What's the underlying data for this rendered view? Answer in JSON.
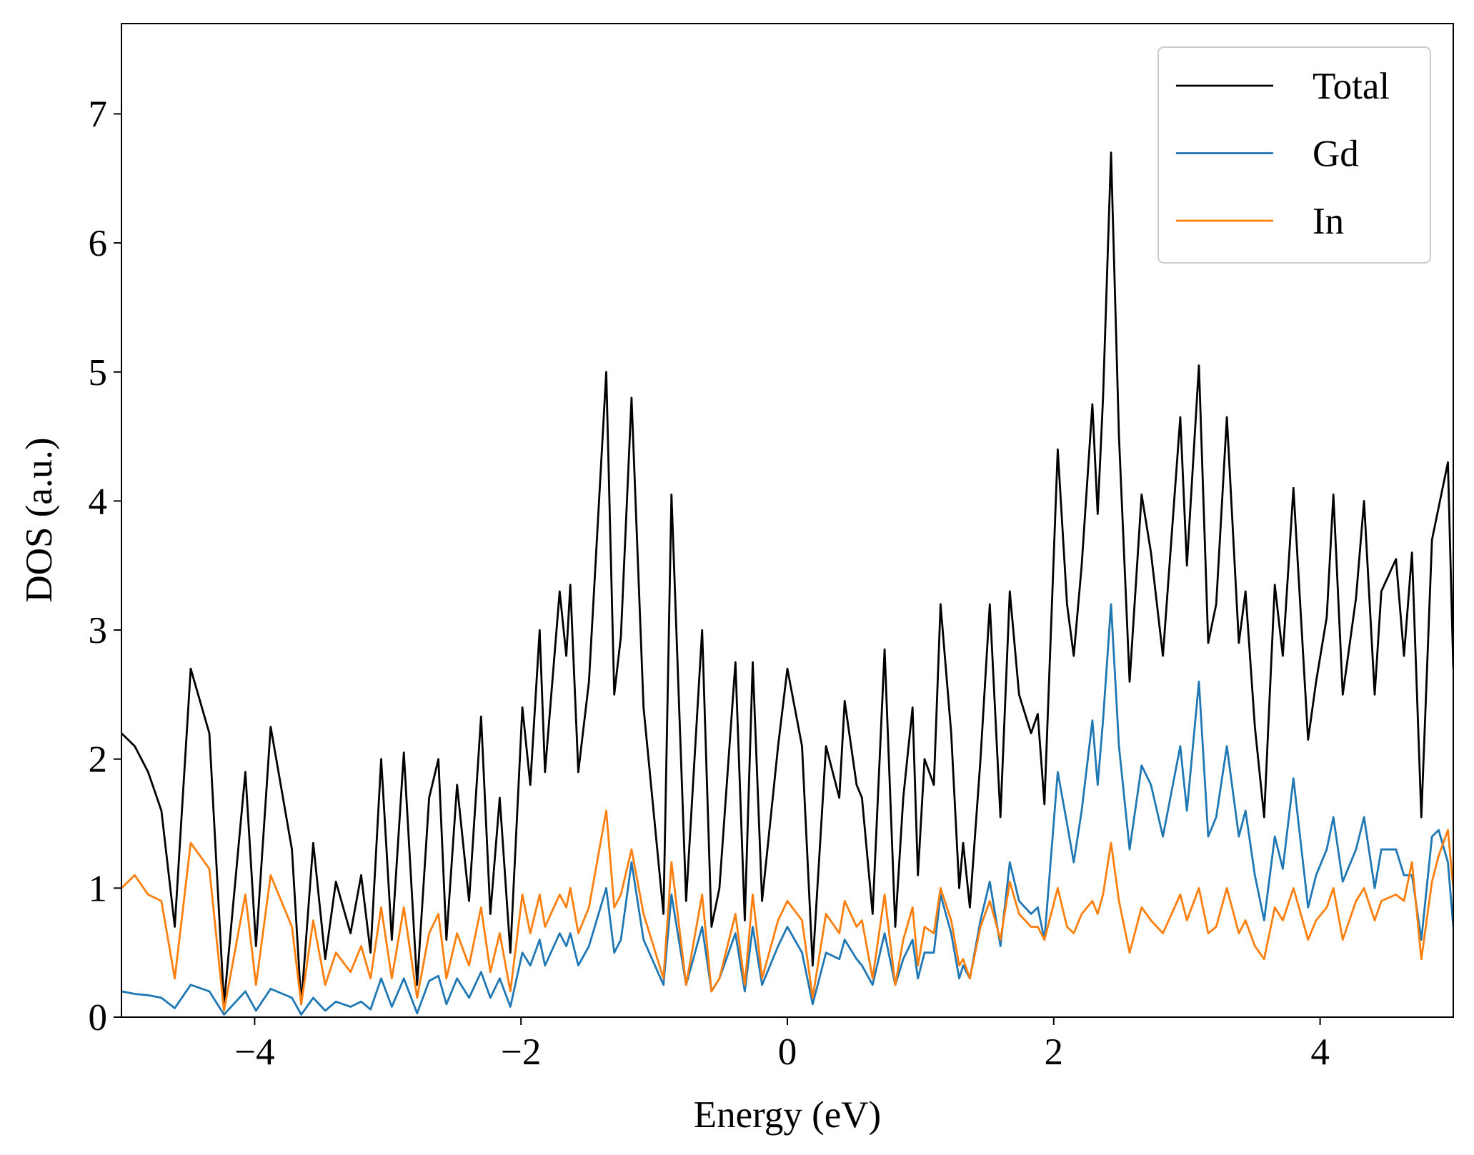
{
  "chart_data": {
    "type": "line",
    "xlabel": "Energy (eV)",
    "ylabel": "DOS (a.u.)",
    "xlim": [
      -5,
      5
    ],
    "ylim": [
      0,
      7.7
    ],
    "xticks": [
      {
        "value": -4,
        "label": "−4"
      },
      {
        "value": -2,
        "label": "−2"
      },
      0,
      2,
      4
    ],
    "yticks": [
      0,
      1,
      2,
      3,
      4,
      5,
      6,
      7
    ],
    "legend": "upper right",
    "grid": false,
    "x": [
      -5.0,
      -4.9,
      -4.8,
      -4.7,
      -4.6,
      -4.48,
      -4.34,
      -4.23,
      -4.07,
      -3.99,
      -3.88,
      -3.72,
      -3.65,
      -3.56,
      -3.47,
      -3.39,
      -3.28,
      -3.2,
      -3.13,
      -3.05,
      -2.97,
      -2.88,
      -2.78,
      -2.69,
      -2.62,
      -2.56,
      -2.48,
      -2.39,
      -2.3,
      -2.23,
      -2.16,
      -2.08,
      -1.99,
      -1.93,
      -1.86,
      -1.82,
      -1.71,
      -1.66,
      -1.63,
      -1.57,
      -1.49,
      -1.36,
      -1.3,
      -1.25,
      -1.17,
      -1.08,
      -0.93,
      -0.87,
      -0.76,
      -0.64,
      -0.57,
      -0.51,
      -0.39,
      -0.32,
      -0.26,
      -0.19,
      -0.07,
      0.0,
      0.11,
      0.19,
      0.29,
      0.39,
      0.43,
      0.52,
      0.56,
      0.64,
      0.73,
      0.81,
      0.87,
      0.94,
      0.98,
      1.03,
      1.1,
      1.15,
      1.23,
      1.29,
      1.32,
      1.37,
      1.45,
      1.52,
      1.6,
      1.67,
      1.74,
      1.83,
      1.88,
      1.93,
      2.03,
      2.1,
      2.15,
      2.21,
      2.29,
      2.33,
      2.37,
      2.43,
      2.49,
      2.57,
      2.66,
      2.73,
      2.82,
      2.95,
      3.0,
      3.09,
      3.16,
      3.22,
      3.3,
      3.39,
      3.44,
      3.51,
      3.58,
      3.66,
      3.72,
      3.8,
      3.91,
      3.97,
      4.05,
      4.1,
      4.17,
      4.27,
      4.33,
      4.41,
      4.46,
      4.57,
      4.63,
      4.69,
      4.76,
      4.84,
      4.89,
      4.96,
      5.0
    ],
    "series": [
      {
        "name": "Total",
        "color": "#000000",
        "values": [
          2.2,
          2.1,
          1.9,
          1.6,
          0.7,
          2.7,
          2.2,
          0.1,
          1.9,
          0.55,
          2.25,
          1.3,
          0.1,
          1.35,
          0.45,
          1.05,
          0.65,
          1.1,
          0.5,
          2.0,
          0.6,
          2.05,
          0.25,
          1.7,
          2.0,
          0.6,
          1.8,
          0.9,
          2.33,
          0.8,
          1.7,
          0.5,
          2.4,
          1.8,
          3.0,
          1.9,
          3.3,
          2.8,
          3.35,
          1.9,
          2.6,
          5.0,
          2.5,
          2.95,
          4.8,
          2.4,
          0.8,
          4.05,
          0.9,
          3.0,
          0.7,
          1.0,
          2.75,
          0.75,
          2.75,
          0.9,
          2.1,
          2.7,
          2.1,
          0.4,
          2.1,
          1.7,
          2.45,
          1.8,
          1.7,
          0.8,
          2.85,
          0.7,
          1.7,
          2.4,
          1.1,
          2.0,
          1.8,
          3.2,
          2.2,
          1.0,
          1.35,
          0.85,
          2.0,
          3.2,
          1.55,
          3.3,
          2.5,
          2.2,
          2.35,
          1.65,
          4.4,
          3.2,
          2.8,
          3.5,
          4.75,
          3.9,
          4.8,
          6.7,
          4.5,
          2.6,
          4.05,
          3.6,
          2.8,
          4.65,
          3.5,
          5.05,
          2.9,
          3.2,
          4.65,
          2.9,
          3.3,
          2.25,
          1.55,
          3.35,
          2.8,
          4.1,
          2.15,
          2.6,
          3.1,
          4.05,
          2.5,
          3.25,
          4.0,
          2.5,
          3.3,
          3.55,
          2.8,
          3.6,
          1.55,
          3.7,
          3.95,
          4.3,
          2.7
        ]
      },
      {
        "name": "Gd",
        "color": "#1f77b4",
        "values": [
          0.2,
          0.18,
          0.17,
          0.15,
          0.07,
          0.25,
          0.2,
          0.02,
          0.2,
          0.05,
          0.22,
          0.15,
          0.02,
          0.15,
          0.05,
          0.12,
          0.08,
          0.12,
          0.06,
          0.3,
          0.08,
          0.3,
          0.03,
          0.28,
          0.32,
          0.1,
          0.3,
          0.15,
          0.35,
          0.15,
          0.3,
          0.08,
          0.5,
          0.4,
          0.6,
          0.4,
          0.65,
          0.55,
          0.65,
          0.4,
          0.55,
          1.0,
          0.5,
          0.6,
          1.2,
          0.6,
          0.25,
          0.95,
          0.25,
          0.7,
          0.2,
          0.3,
          0.65,
          0.2,
          0.7,
          0.25,
          0.55,
          0.7,
          0.5,
          0.1,
          0.5,
          0.45,
          0.6,
          0.45,
          0.4,
          0.25,
          0.65,
          0.25,
          0.45,
          0.6,
          0.3,
          0.5,
          0.5,
          0.95,
          0.65,
          0.3,
          0.4,
          0.3,
          0.75,
          1.05,
          0.55,
          1.2,
          0.9,
          0.8,
          0.85,
          0.6,
          1.9,
          1.5,
          1.2,
          1.6,
          2.3,
          1.8,
          2.3,
          3.2,
          2.1,
          1.3,
          1.95,
          1.8,
          1.4,
          2.1,
          1.6,
          2.6,
          1.4,
          1.55,
          2.1,
          1.4,
          1.6,
          1.1,
          0.75,
          1.4,
          1.15,
          1.85,
          0.85,
          1.1,
          1.3,
          1.55,
          1.05,
          1.3,
          1.55,
          1.0,
          1.3,
          1.3,
          1.1,
          1.1,
          0.6,
          1.4,
          1.45,
          1.2,
          0.7
        ]
      },
      {
        "name": "In",
        "color": "#ff7f0e",
        "values": [
          1.0,
          1.1,
          0.95,
          0.9,
          0.3,
          1.35,
          1.15,
          0.05,
          0.95,
          0.25,
          1.1,
          0.7,
          0.1,
          0.75,
          0.25,
          0.5,
          0.35,
          0.55,
          0.3,
          0.85,
          0.3,
          0.85,
          0.15,
          0.65,
          0.8,
          0.3,
          0.65,
          0.4,
          0.85,
          0.35,
          0.65,
          0.2,
          0.95,
          0.65,
          0.95,
          0.7,
          0.95,
          0.85,
          1.0,
          0.65,
          0.85,
          1.6,
          0.85,
          0.95,
          1.3,
          0.8,
          0.3,
          1.2,
          0.25,
          0.95,
          0.2,
          0.3,
          0.8,
          0.25,
          0.95,
          0.3,
          0.75,
          0.9,
          0.75,
          0.15,
          0.8,
          0.65,
          0.9,
          0.7,
          0.75,
          0.3,
          0.95,
          0.25,
          0.6,
          0.85,
          0.4,
          0.7,
          0.65,
          1.0,
          0.75,
          0.4,
          0.45,
          0.3,
          0.7,
          0.9,
          0.6,
          1.05,
          0.8,
          0.7,
          0.7,
          0.6,
          1.0,
          0.7,
          0.65,
          0.8,
          0.9,
          0.8,
          0.95,
          1.35,
          0.9,
          0.5,
          0.85,
          0.75,
          0.65,
          0.95,
          0.75,
          1.0,
          0.65,
          0.7,
          1.0,
          0.65,
          0.75,
          0.55,
          0.45,
          0.85,
          0.75,
          1.0,
          0.6,
          0.75,
          0.85,
          1.0,
          0.6,
          0.9,
          1.0,
          0.75,
          0.9,
          0.95,
          0.9,
          1.2,
          0.45,
          1.05,
          1.25,
          1.45,
          1.0
        ]
      }
    ]
  }
}
